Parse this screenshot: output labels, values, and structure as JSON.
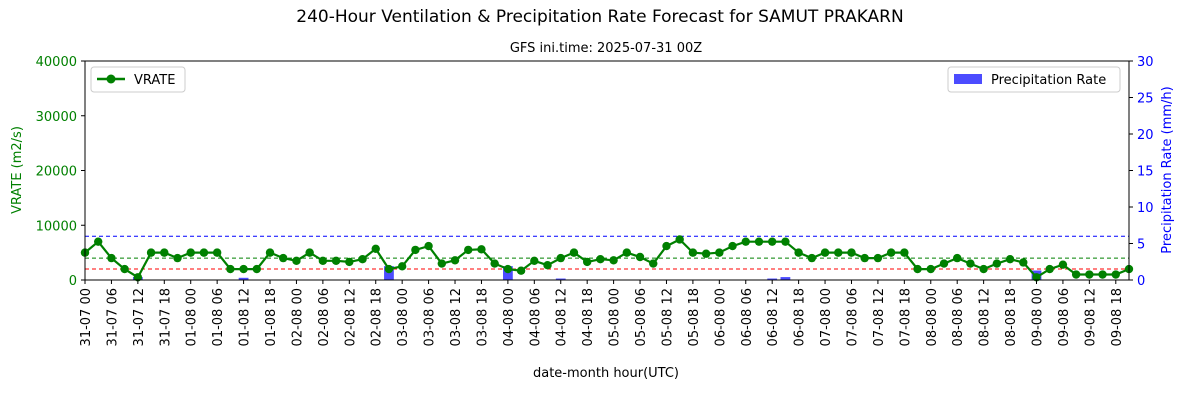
{
  "chart_data": {
    "type": "line",
    "title": "240-Hour Ventilation & Precipitation Rate Forecast for SAMUT PRAKARN",
    "subtitle": "GFS ini.time: 2025-07-31 00Z",
    "xlabel": "date-month hour(UTC)",
    "ylabel_left": "VRATE (m2/s)",
    "ylabel_right": "Precipitation Rate (mm/h)",
    "ylim_left": [
      0,
      40000
    ],
    "ylim_right": [
      0,
      30
    ],
    "yticks_left": [
      "0",
      "10000",
      "20000",
      "30000",
      "40000"
    ],
    "yticks_right": [
      "0",
      "5",
      "10",
      "15",
      "20",
      "25",
      "30"
    ],
    "grid": false,
    "legend_left": "top-left",
    "legend_right": "top-right",
    "x_tick_labels": [
      "31-07 00",
      "31-07 06",
      "31-07 12",
      "31-07 18",
      "01-08 00",
      "01-08 06",
      "01-08 12",
      "01-08 18",
      "02-08 00",
      "02-08 06",
      "02-08 12",
      "02-08 18",
      "03-08 00",
      "03-08 06",
      "03-08 12",
      "03-08 18",
      "04-08 00",
      "04-08 06",
      "04-08 12",
      "04-08 18",
      "05-08 00",
      "05-08 06",
      "05-08 12",
      "05-08 18",
      "06-08 00",
      "06-08 06",
      "06-08 12",
      "06-08 18",
      "07-08 00",
      "07-08 06",
      "07-08 12",
      "07-08 18",
      "08-08 00",
      "08-08 06",
      "08-08 12",
      "08-08 18",
      "09-08 00",
      "09-08 06",
      "09-08 12",
      "09-08 18"
    ],
    "x_step_hours": 3,
    "series": [
      {
        "name": "VRATE",
        "color": "#008000",
        "axis": "left",
        "values": [
          5000,
          7000,
          4000,
          2000,
          500,
          5000,
          5000,
          4000,
          5000,
          5000,
          5000,
          2000,
          2000,
          2000,
          5000,
          4000,
          3500,
          5000,
          3500,
          3500,
          3300,
          3800,
          5700,
          2000,
          2500,
          5500,
          6200,
          3000,
          3600,
          5500,
          5600,
          3000,
          2000,
          1700,
          3500,
          2700,
          4000,
          5000,
          3300,
          3800,
          3600,
          5000,
          4200,
          3000,
          6200,
          7400,
          5000,
          4800,
          5000,
          6200,
          7000,
          7000,
          7000,
          7000,
          5000,
          4000,
          5000,
          5000,
          5000,
          4000,
          4000,
          5000,
          5000,
          2000,
          2000,
          3000,
          4000,
          3000,
          2000,
          3000,
          3800,
          3200,
          500,
          2000,
          2800,
          1000,
          1000,
          1000,
          1000,
          2000
        ]
      },
      {
        "name": "Precipitation Rate",
        "color": "#0000ff",
        "axis": "right",
        "type": "bar",
        "bars": [
          {
            "index": 4,
            "value": 0.4
          },
          {
            "index": 12,
            "value": 0.3
          },
          {
            "index": 23,
            "value": 1.9
          },
          {
            "index": 32,
            "value": 1.9
          },
          {
            "index": 36,
            "value": 0.2
          },
          {
            "index": 52,
            "value": 0.2
          },
          {
            "index": 53,
            "value": 0.4
          },
          {
            "index": 72,
            "value": 1.3
          }
        ]
      }
    ],
    "reference_lines": [
      {
        "axis": "right",
        "value": 6,
        "color": "#0000ff"
      },
      {
        "axis": "left",
        "value": 4000,
        "color": "#008000"
      },
      {
        "axis": "left",
        "value": 2000,
        "color": "#ff0000"
      }
    ]
  }
}
